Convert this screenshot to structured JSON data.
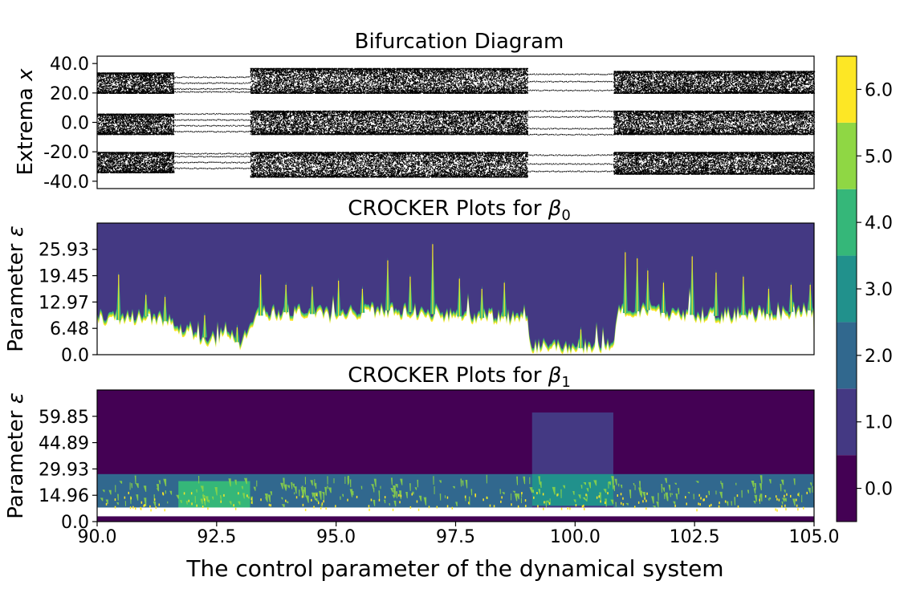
{
  "figure": {
    "xlabel": "The control parameter of the dynamical system"
  },
  "colors": {
    "viridis_levels": [
      "#440154",
      "#443983",
      "#31688e",
      "#21918c",
      "#35b779",
      "#8fd744",
      "#fde725"
    ],
    "dots": "#000000",
    "background": "#ffffff"
  },
  "chart_data": [
    {
      "type": "scatter",
      "title": "Bifurcation Diagram",
      "ylabel_text": "Extrema",
      "ylabel_symbol": "x",
      "xlim": [
        90.0,
        105.0
      ],
      "ylim": [
        -45.0,
        45.0
      ],
      "yticks": [
        -40.0,
        -20.0,
        0.0,
        20.0,
        40.0
      ],
      "ytick_labels": [
        "-40.0",
        "-20.0",
        "0.0",
        "20.0",
        "40.0"
      ],
      "x_regions": [
        {
          "range": [
            90.0,
            91.6
          ],
          "behavior": "chaotic",
          "bands": [
            [
              20,
              34
            ],
            [
              -8,
              6
            ],
            [
              -34,
              -20
            ]
          ]
        },
        {
          "range": [
            91.6,
            93.2
          ],
          "behavior": "periodic",
          "levels": [
            31,
            27,
            23,
            21,
            6,
            2,
            -2,
            -6,
            -21,
            -23,
            -27,
            -31
          ]
        },
        {
          "range": [
            93.2,
            99.0
          ],
          "behavior": "chaotic",
          "bands": [
            [
              20,
              37
            ],
            [
              -8,
              8
            ],
            [
              -37,
              -20
            ]
          ]
        },
        {
          "range": [
            99.0,
            100.8
          ],
          "behavior": "periodic",
          "levels": [
            33,
            28,
            22,
            8,
            4,
            -4,
            -8,
            -22,
            -28,
            -33
          ]
        },
        {
          "range": [
            100.8,
            105.0
          ],
          "behavior": "chaotic",
          "bands": [
            [
              20,
              35
            ],
            [
              -8,
              8
            ],
            [
              -35,
              -20
            ]
          ]
        }
      ]
    },
    {
      "type": "heatmap",
      "title_text": "CROCKER Plots for",
      "title_symbol": "β",
      "title_subscript": "0",
      "ylabel_text": "Parameter",
      "ylabel_symbol": "ε",
      "xlim": [
        90.0,
        105.0
      ],
      "ylim": [
        0.0,
        32.4
      ],
      "yticks": [
        0.0,
        6.48,
        12.97,
        19.45,
        25.93
      ],
      "ytick_labels": [
        "0.0",
        "6.48",
        "12.97",
        "19.45",
        "25.93"
      ],
      "boundary_x": [
        90.0,
        90.5,
        91.0,
        91.5,
        92.0,
        92.5,
        92.7,
        92.9,
        93.1,
        93.3,
        93.5,
        94.0,
        95.0,
        96.0,
        97.0,
        98.0,
        98.5,
        99.0,
        99.1,
        99.5,
        100.0,
        100.5,
        100.8,
        100.9,
        101.5,
        102.0,
        103.0,
        104.0,
        105.0
      ],
      "boundary_eps": [
        9.0,
        8.5,
        9.5,
        8.0,
        5.0,
        3.5,
        7.0,
        3.0,
        3.5,
        9.0,
        10.0,
        10.5,
        9.5,
        11.0,
        10.0,
        9.0,
        9.5,
        8.0,
        2.0,
        1.5,
        1.5,
        2.0,
        1.5,
        10.0,
        11.0,
        10.0,
        9.5,
        10.0,
        11.0
      ],
      "spike_x": [
        90.45,
        91.02,
        91.42,
        92.25,
        92.93,
        93.42,
        93.95,
        94.5,
        95.05,
        95.55,
        96.08,
        96.55,
        97.02,
        97.58,
        98.05,
        98.52,
        100.12,
        101.05,
        101.3,
        101.52,
        101.85,
        102.45,
        102.95,
        103.52,
        104.05,
        104.52,
        104.92
      ],
      "spike_eps": [
        20.5,
        15.5,
        15.0,
        10.5,
        7.5,
        20.5,
        18.0,
        17.5,
        19.0,
        17.0,
        24.0,
        20.0,
        28.0,
        19.5,
        17.0,
        18.5,
        7.0,
        26.0,
        24.5,
        21.5,
        18.5,
        25.0,
        21.0,
        20.0,
        17.0,
        18.0,
        18.0
      ],
      "levels_shown": {
        "below_boundary": "white",
        "near_boundary": [
          6,
          5,
          4
        ],
        "above_boundary": 1
      }
    },
    {
      "type": "heatmap",
      "title_text": "CROCKER Plots for",
      "title_symbol": "β",
      "title_subscript": "1",
      "ylabel_text": "Parameter",
      "ylabel_symbol": "ε",
      "xlim": [
        90.0,
        105.0
      ],
      "ylim": [
        0.0,
        74.8
      ],
      "yticks": [
        0.0,
        14.96,
        29.93,
        44.89,
        59.85
      ],
      "ytick_labels": [
        "0.0",
        "14.96",
        "29.93",
        "44.89",
        "59.85"
      ],
      "regions": [
        {
          "x": [
            90.0,
            105.0
          ],
          "eps": [
            0.0,
            74.8
          ],
          "level": 0
        },
        {
          "x": [
            90.0,
            105.0
          ],
          "eps": [
            3.0,
            27.0
          ],
          "level": 2
        },
        {
          "x": [
            91.7,
            93.2
          ],
          "eps": [
            7.0,
            23.0
          ],
          "level": 4
        },
        {
          "x": [
            99.1,
            100.8
          ],
          "eps": [
            3.0,
            62.0
          ],
          "level": 1
        },
        {
          "x": [
            99.1,
            100.8
          ],
          "eps": [
            9.0,
            27.0
          ],
          "level": 3
        },
        {
          "x": [
            90.0,
            105.0
          ],
          "eps": [
            3.0,
            8.0
          ],
          "level": "white"
        }
      ]
    },
    {
      "type": "colorbar",
      "ticks": [
        0.0,
        1.0,
        2.0,
        3.0,
        4.0,
        5.0,
        6.0
      ],
      "tick_labels": [
        "0.0",
        "1.0",
        "2.0",
        "3.0",
        "4.0",
        "5.0",
        "6.0"
      ],
      "range": [
        -0.5,
        6.5
      ]
    }
  ],
  "x_axis": {
    "ticks": [
      90.0,
      92.5,
      95.0,
      97.5,
      100.0,
      102.5,
      105.0
    ],
    "tick_labels": [
      "90.0",
      "92.5",
      "95.0",
      "97.5",
      "100.0",
      "102.5",
      "105.0"
    ]
  }
}
